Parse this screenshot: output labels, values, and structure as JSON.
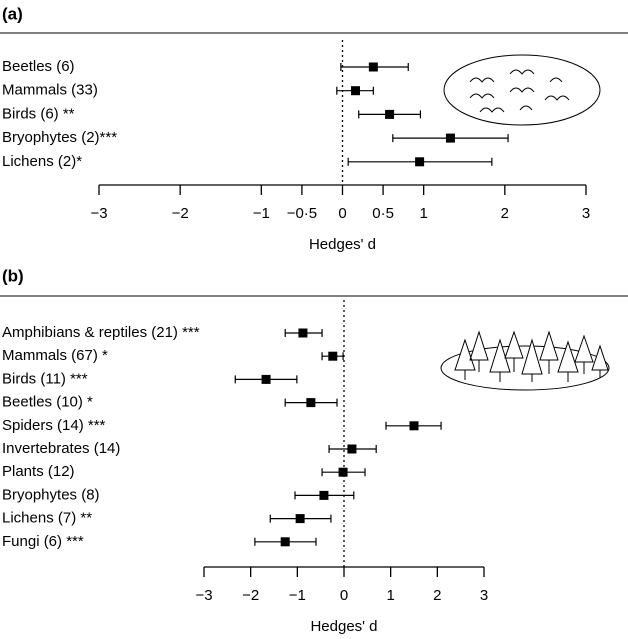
{
  "chart_data": [
    {
      "type": "forest",
      "panel": "(a)",
      "xlabel": "Hedges' d",
      "categories": [
        "Beetles (6)",
        "Mammals (33)",
        "Birds (6) **",
        "Bryophytes (2)***",
        "Lichens (2)*"
      ],
      "values": [
        0.38,
        0.16,
        0.58,
        1.33,
        0.95
      ],
      "lower": [
        -0.02,
        -0.07,
        0.2,
        0.62,
        0.07
      ],
      "upper": [
        0.81,
        0.38,
        0.96,
        2.04,
        1.84
      ],
      "color": "#000000",
      "refline": 0,
      "xlim": [
        -3,
        3
      ],
      "xticks": [
        {
          "value": -3,
          "label": "−3"
        },
        {
          "value": -2,
          "label": "−2"
        },
        {
          "value": -1,
          "label": "−1"
        },
        {
          "value": -0.5,
          "label": "−0·5"
        },
        0,
        {
          "value": 0.5,
          "label": "0·5"
        },
        1,
        2,
        3
      ]
    },
    {
      "type": "forest",
      "panel": "(b)",
      "xlabel": "Hedges' d",
      "categories": [
        "Amphibians & reptiles (21) ***",
        "Mammals (67) *",
        "Birds (11) ***",
        "Beetles (10) *",
        "Spiders (14) ***",
        "Invertebrates (14)",
        "Plants (12)",
        "Bryophytes (8)",
        "Lichens (7) **",
        "Fungi (6) ***"
      ],
      "values": [
        -0.88,
        -0.24,
        -1.67,
        -0.71,
        1.5,
        0.17,
        -0.02,
        -0.43,
        -0.94,
        -1.26
      ],
      "lower": [
        -1.26,
        -0.47,
        -2.33,
        -1.26,
        0.9,
        -0.32,
        -0.47,
        -1.05,
        -1.58,
        -1.91
      ],
      "upper": [
        -0.47,
        -0.02,
        -1.01,
        -0.15,
        2.08,
        0.69,
        0.45,
        0.21,
        -0.28,
        -0.6
      ],
      "color": "#000000",
      "refline": 0,
      "xlim": [
        -3,
        3
      ],
      "xticks": [
        {
          "value": -3,
          "label": "−3"
        },
        {
          "value": -2,
          "label": "−2"
        },
        {
          "value": -1,
          "label": "−1"
        },
        0,
        1,
        2,
        3
      ]
    }
  ]
}
